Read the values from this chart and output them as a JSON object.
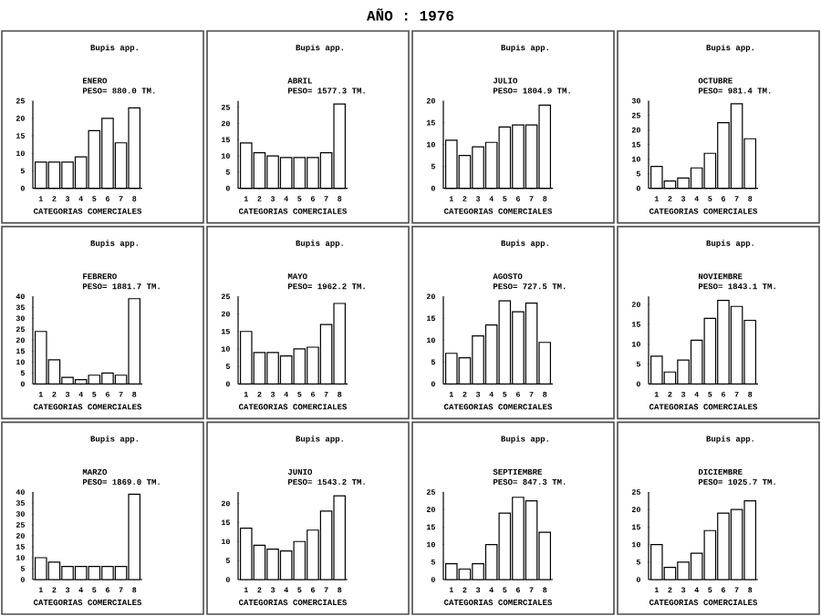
{
  "chart_data": [
    {
      "type": "bar",
      "title": "Bupis app.",
      "subtitle": "ENERO",
      "annotations": [
        "PESO=   880.0 TM.",
        "AÑO : 1976"
      ],
      "xlabel": "CATEGORIAS COMERCIALES",
      "categories": [
        "1",
        "2",
        "3",
        "4",
        "5",
        "6",
        "7",
        "8"
      ],
      "values": [
        7.5,
        7.5,
        7.5,
        9,
        16.5,
        20,
        13,
        23
      ],
      "color": "#ffffff",
      "ylim": [
        0,
        25
      ],
      "yticks": [
        0,
        5,
        10,
        15,
        20,
        25
      ]
    },
    {
      "type": "bar",
      "title": "Bupis app.",
      "subtitle": "ABRIL",
      "annotations": [
        "PESO=  1577.3 TM."
      ],
      "xlabel": "CATEGORIAS COMERCIALES",
      "categories": [
        "1",
        "2",
        "3",
        "4",
        "5",
        "6",
        "7",
        "8"
      ],
      "values": [
        14,
        11,
        10,
        9.5,
        9.5,
        9.5,
        11,
        26
      ],
      "color": "#ffffff",
      "ylim": [
        0,
        27
      ],
      "yticks": [
        0,
        5,
        10,
        15,
        20,
        25
      ]
    },
    {
      "type": "bar",
      "title": "Bupis app.",
      "subtitle": "JULIO",
      "annotations": [
        "PESO=  1804.9 TM."
      ],
      "xlabel": "CATEGORIAS COMERCIALES",
      "categories": [
        "1",
        "2",
        "3",
        "4",
        "5",
        "6",
        "7",
        "8"
      ],
      "values": [
        11,
        7.5,
        9.5,
        10.5,
        14,
        14.5,
        14.5,
        19
      ],
      "color": "#ffffff",
      "ylim": [
        0,
        20
      ],
      "yticks": [
        0,
        5,
        10,
        15,
        20
      ]
    },
    {
      "type": "bar",
      "title": "Bupis app.",
      "subtitle": "OCTUBRE",
      "annotations": [
        "PESO=   981.4 TM."
      ],
      "xlabel": "CATEGORIAS COMERCIALES",
      "categories": [
        "1",
        "2",
        "3",
        "4",
        "5",
        "6",
        "7",
        "8"
      ],
      "values": [
        7.5,
        2.5,
        3.5,
        7,
        12,
        22.5,
        29,
        17
      ],
      "color": "#ffffff",
      "ylim": [
        0,
        30
      ],
      "yticks": [
        0,
        5,
        10,
        15,
        20,
        25,
        30
      ]
    },
    {
      "type": "bar",
      "title": "Bupis app.",
      "subtitle": "FEBRERO",
      "annotations": [
        "PESO=  1881.7 TM."
      ],
      "xlabel": "CATEGORIAS COMERCIALES",
      "categories": [
        "1",
        "2",
        "3",
        "4",
        "5",
        "6",
        "7",
        "8"
      ],
      "values": [
        24,
        11,
        3,
        2,
        4,
        5,
        4,
        39
      ],
      "color": "#ffffff",
      "ylim": [
        0,
        40
      ],
      "yticks": [
        0,
        5,
        10,
        15,
        20,
        25,
        30,
        35,
        40
      ]
    },
    {
      "type": "bar",
      "title": "Bupis app.",
      "subtitle": "MAYO",
      "annotations": [
        "PESO=  1962.2 TM."
      ],
      "xlabel": "CATEGORIAS COMERCIALES",
      "categories": [
        "1",
        "2",
        "3",
        "4",
        "5",
        "6",
        "7",
        "8"
      ],
      "values": [
        15,
        9,
        9,
        8,
        10,
        10.5,
        17,
        23
      ],
      "color": "#ffffff",
      "ylim": [
        0,
        25
      ],
      "yticks": [
        0,
        5,
        10,
        15,
        20,
        25
      ]
    },
    {
      "type": "bar",
      "title": "Bupis app.",
      "subtitle": "AGOSTO",
      "annotations": [
        "PESO=   727.5 TM."
      ],
      "xlabel": "CATEGORIAS COMERCIALES",
      "categories": [
        "1",
        "2",
        "3",
        "4",
        "5",
        "6",
        "7",
        "8"
      ],
      "values": [
        7,
        6,
        11,
        13.5,
        19,
        16.5,
        18.5,
        9.5
      ],
      "color": "#ffffff",
      "ylim": [
        0,
        20
      ],
      "yticks": [
        0,
        5,
        10,
        15,
        20
      ]
    },
    {
      "type": "bar",
      "title": "Bupis app.",
      "subtitle": "NOVIEMBRE",
      "annotations": [
        "PESO=  1843.1 TM."
      ],
      "xlabel": "CATEGORIAS COMERCIALES",
      "categories": [
        "1",
        "2",
        "3",
        "4",
        "5",
        "6",
        "7",
        "8"
      ],
      "values": [
        7,
        3,
        6,
        11,
        16.5,
        21,
        19.5,
        16
      ],
      "color": "#ffffff",
      "ylim": [
        0,
        22
      ],
      "yticks": [
        0,
        5,
        10,
        15,
        20
      ]
    },
    {
      "type": "bar",
      "title": "Bupis app.",
      "subtitle": "MARZO",
      "annotations": [
        "PESO=  1869.0 TM."
      ],
      "xlabel": "CATEGORIAS COMERCIALES",
      "categories": [
        "1",
        "2",
        "3",
        "4",
        "5",
        "6",
        "7",
        "8"
      ],
      "values": [
        10,
        8,
        6,
        6,
        6,
        6,
        6,
        39
      ],
      "color": "#ffffff",
      "ylim": [
        0,
        40
      ],
      "yticks": [
        0,
        5,
        10,
        15,
        20,
        25,
        30,
        35,
        40
      ]
    },
    {
      "type": "bar",
      "title": "Bupis app.",
      "subtitle": "JUNIO",
      "annotations": [
        "PESO=  1543.2 TM."
      ],
      "xlabel": "CATEGORIAS COMERCIALES",
      "categories": [
        "1",
        "2",
        "3",
        "4",
        "5",
        "6",
        "7",
        "8"
      ],
      "values": [
        13.5,
        9,
        8,
        7.5,
        10,
        13,
        18,
        22
      ],
      "color": "#ffffff",
      "ylim": [
        0,
        23
      ],
      "yticks": [
        0,
        5,
        10,
        15,
        20
      ]
    },
    {
      "type": "bar",
      "title": "Bupis app.",
      "subtitle": "SEPTIEMBRE",
      "annotations": [
        "PESO=   847.3 TM."
      ],
      "xlabel": "CATEGORIAS COMERCIALES",
      "categories": [
        "1",
        "2",
        "3",
        "4",
        "5",
        "6",
        "7",
        "8"
      ],
      "values": [
        4.5,
        3,
        4.5,
        10,
        19,
        23.5,
        22.5,
        13.5
      ],
      "color": "#ffffff",
      "ylim": [
        0,
        25
      ],
      "yticks": [
        0,
        5,
        10,
        15,
        20,
        25
      ]
    },
    {
      "type": "bar",
      "title": "Bupis app.",
      "subtitle": "DICIEMBRE",
      "annotations": [
        "PESO=  1025.7 TM."
      ],
      "xlabel": "CATEGORIAS COMERCIALES",
      "categories": [
        "1",
        "2",
        "3",
        "4",
        "5",
        "6",
        "7",
        "8"
      ],
      "values": [
        10,
        3.5,
        5,
        7.5,
        14,
        19,
        20,
        22.5
      ],
      "color": "#ffffff",
      "ylim": [
        0,
        25
      ],
      "yticks": [
        0,
        5,
        10,
        15,
        20,
        25
      ]
    }
  ]
}
